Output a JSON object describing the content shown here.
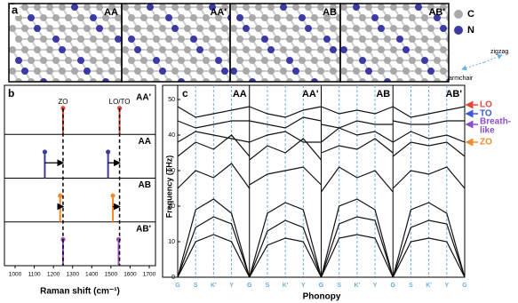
{
  "panel_a": {
    "label": "a",
    "structures": [
      "AA",
      "AA'",
      "AB",
      "AB'"
    ],
    "legend": [
      {
        "name": "C",
        "color": "#a9a9a9"
      },
      {
        "name": "N",
        "color": "#3b3ba3"
      }
    ],
    "directions": [
      "armchair",
      "zigzag"
    ]
  },
  "chart_data": [
    {
      "type": "stem",
      "label": "b",
      "xlabel": "Raman shift (cm⁻¹)",
      "xlim": [
        1000,
        1700
      ],
      "xticks": [
        1000,
        1100,
        1200,
        1300,
        1400,
        1500,
        1600,
        1700
      ],
      "peak_labels": [
        "ZO",
        "LO/TO"
      ],
      "series": [
        {
          "name": "AA'",
          "color": "#e8453c",
          "x": [
            1250,
            1545
          ]
        },
        {
          "name": "AA",
          "color": "#3b3ba3",
          "x": [
            1155,
            1485
          ]
        },
        {
          "name": "AB",
          "color": "#f08a2c",
          "x": [
            1235,
            1510
          ]
        },
        {
          "name": "AB'",
          "color": "#9b4fc0",
          "x": [
            1250,
            1540
          ]
        }
      ]
    },
    {
      "type": "line",
      "label": "c",
      "ylabel": "Frequency (THz)",
      "xlabel": "Phonopy",
      "ylim": [
        0,
        54
      ],
      "yticks": [
        0,
        10,
        20,
        30,
        40,
        50
      ],
      "kpoints": [
        "G",
        "S",
        "K'",
        "Y",
        "G"
      ],
      "panels": [
        {
          "name": "AA",
          "bands": [
            [
              0,
              10,
              12,
              10,
              0
            ],
            [
              0,
              14,
              17,
              15,
              0
            ],
            [
              0,
              19,
              22,
              18,
              0
            ],
            [
              25,
              30,
              28,
              32,
              25
            ],
            [
              34,
              38,
              36,
              40,
              34
            ],
            [
              38,
              41,
              40,
              39,
              38
            ],
            [
              44,
              42,
              43,
              44,
              44
            ],
            [
              48,
              45,
              46,
              47,
              48
            ]
          ]
        },
        {
          "name": "AA'",
          "bands": [
            [
              0,
              9,
              11,
              10,
              0
            ],
            [
              0,
              13,
              16,
              14,
              0
            ],
            [
              0,
              18,
              21,
              19,
              0
            ],
            [
              26,
              29,
              30,
              31,
              26
            ],
            [
              33,
              37,
              35,
              39,
              33
            ],
            [
              38,
              40,
              41,
              38,
              38
            ],
            [
              44,
              43,
              42,
              45,
              44
            ],
            [
              48,
              46,
              45,
              47,
              48
            ]
          ]
        },
        {
          "name": "AB",
          "bands": [
            [
              0,
              11,
              12,
              11,
              0
            ],
            [
              0,
              15,
              17,
              16,
              0
            ],
            [
              0,
              20,
              22,
              19,
              0
            ],
            [
              24,
              31,
              28,
              30,
              24
            ],
            [
              35,
              37,
              36,
              39,
              35
            ],
            [
              38,
              42,
              40,
              41,
              38
            ],
            [
              43,
              42,
              44,
              43,
              43
            ],
            [
              48,
              46,
              47,
              46,
              48
            ]
          ]
        },
        {
          "name": "AB'",
          "bands": [
            [
              0,
              10,
              11,
              10,
              0
            ],
            [
              0,
              14,
              16,
              15,
              0
            ],
            [
              0,
              19,
              21,
              18,
              0
            ],
            [
              25,
              30,
              29,
              31,
              25
            ],
            [
              34,
              38,
              37,
              38,
              34
            ],
            [
              38,
              41,
              39,
              40,
              38
            ],
            [
              44,
              43,
              43,
              44,
              44
            ],
            [
              48,
              45,
              46,
              47,
              48
            ]
          ]
        }
      ],
      "annotations": [
        {
          "lines": [
            "LO"
          ],
          "color": "#e8453c",
          "value": 48.5
        },
        {
          "lines": [
            "TO"
          ],
          "color": "#3b5bd6",
          "value": 46
        },
        {
          "lines": [
            "Breath-",
            "like"
          ],
          "color": "#8a4fc8",
          "value": 43
        },
        {
          "lines": [
            "ZO"
          ],
          "color": "#f08a2c",
          "value": 38
        }
      ]
    }
  ]
}
